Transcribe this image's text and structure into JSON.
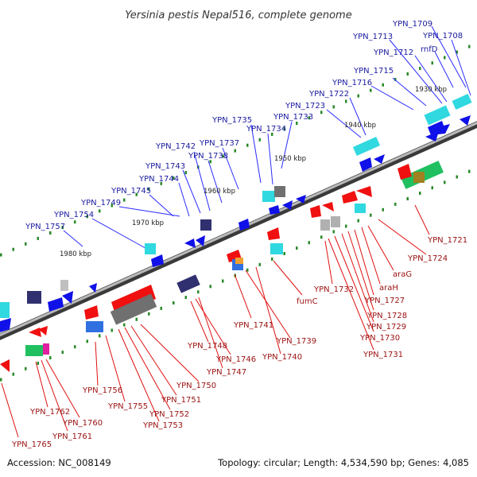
{
  "title": "Yersinia pestis Nepal516, complete genome",
  "accession_text": "Accession: NC_008149",
  "summary_text": "Topology: circular; Length: 4,534,590 bp; Genes: 4,085",
  "ticks": [
    "1930 kbp",
    "1940 kbp",
    "1950 kbp",
    "1960 kbp",
    "1970 kbp",
    "1980 kbp"
  ],
  "top_genes": [
    "YPN_1709",
    "YPN_1713",
    "YPN_1708",
    "YPN_1712",
    "rnfD",
    "YPN_1715",
    "YPN_1716",
    "YPN_1722",
    "YPN_1723",
    "YPN_1733",
    "YPN_1735",
    "YPN_1734",
    "YPN_1737",
    "YPN_1742",
    "YPN_1738",
    "YPN_1743",
    "YPN_1744",
    "YPN_1745",
    "YPN_1749",
    "YPN_1754",
    "YPN_1757"
  ],
  "bottom_genes": [
    "YPN_1721",
    "YPN_1724",
    "araG",
    "araH",
    "fumC",
    "YPN_1732",
    "YPN_1727",
    "YPN_1728",
    "YPN_1729",
    "YPN_1730",
    "YPN_1731",
    "YPN_1741",
    "YPN_1739",
    "YPN_1740",
    "YPN_1748",
    "YPN_1746",
    "YPN_1747",
    "YPN_1750",
    "YPN_1751",
    "YPN_1752",
    "YPN_1753",
    "YPN_1755",
    "YPN_1756",
    "YPN_1762",
    "YPN_1760",
    "YPN_1761",
    "YPN_1765"
  ],
  "colors": {
    "backbone": "#7f7f7f",
    "forward_gene": "#1010e8",
    "reverse_gene": "#f01010",
    "top_label": "#1a1aa0",
    "bottom_label": "#9a1010",
    "cog_cyan": "#30d8e0",
    "cog_navy": "#303070",
    "cog_gray": "#707070",
    "cog_green": "#20c060",
    "cog_magenta": "#e020a0",
    "cog_orange": "#f0a030",
    "tick_dots": "#2a8a2a"
  }
}
